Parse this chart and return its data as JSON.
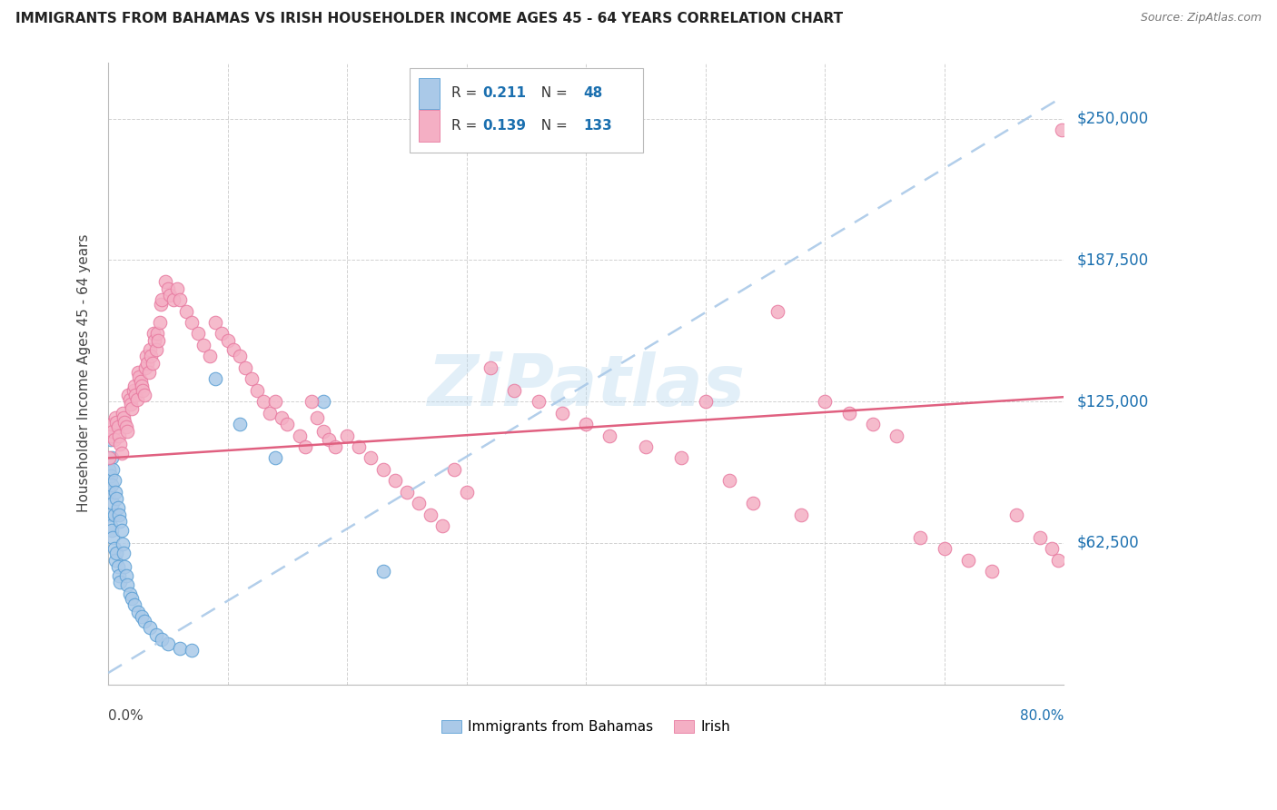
{
  "title": "IMMIGRANTS FROM BAHAMAS VS IRISH HOUSEHOLDER INCOME AGES 45 - 64 YEARS CORRELATION CHART",
  "source": "Source: ZipAtlas.com",
  "ylabel": "Householder Income Ages 45 - 64 years",
  "yticks": [
    0,
    62500,
    125000,
    187500,
    250000
  ],
  "ytick_labels": [
    "",
    "$62,500",
    "$125,000",
    "$187,500",
    "$250,000"
  ],
  "xmin": 0.0,
  "xmax": 0.8,
  "ymin": 0,
  "ymax": 275000,
  "legend_label_blue": "Immigrants from Bahamas",
  "legend_label_pink": "Irish",
  "watermark": "ZiPatlas",
  "blue_color": "#aac9e8",
  "pink_color": "#f4afc4",
  "blue_edge": "#5b9fd4",
  "pink_edge": "#e87aa0",
  "trend_blue_color": "#aac9e8",
  "trend_pink_color": "#e06080",
  "background": "#ffffff",
  "blue_scatter_x": [
    0.001,
    0.001,
    0.001,
    0.002,
    0.002,
    0.002,
    0.003,
    0.003,
    0.003,
    0.004,
    0.004,
    0.004,
    0.005,
    0.005,
    0.005,
    0.006,
    0.006,
    0.007,
    0.007,
    0.008,
    0.008,
    0.009,
    0.009,
    0.01,
    0.01,
    0.011,
    0.012,
    0.013,
    0.014,
    0.015,
    0.016,
    0.018,
    0.02,
    0.022,
    0.025,
    0.028,
    0.03,
    0.035,
    0.04,
    0.045,
    0.05,
    0.06,
    0.07,
    0.09,
    0.11,
    0.14,
    0.18,
    0.23
  ],
  "blue_scatter_y": [
    95000,
    85000,
    75000,
    108000,
    92000,
    70000,
    100000,
    88000,
    68000,
    95000,
    80000,
    65000,
    90000,
    75000,
    60000,
    85000,
    55000,
    82000,
    58000,
    78000,
    52000,
    75000,
    48000,
    72000,
    45000,
    68000,
    62000,
    58000,
    52000,
    48000,
    44000,
    40000,
    38000,
    35000,
    32000,
    30000,
    28000,
    25000,
    22000,
    20000,
    18000,
    16000,
    15000,
    135000,
    115000,
    100000,
    125000,
    50000
  ],
  "pink_scatter_x": [
    0.001,
    0.002,
    0.003,
    0.004,
    0.005,
    0.006,
    0.007,
    0.008,
    0.009,
    0.01,
    0.011,
    0.012,
    0.013,
    0.014,
    0.015,
    0.016,
    0.017,
    0.018,
    0.019,
    0.02,
    0.021,
    0.022,
    0.023,
    0.024,
    0.025,
    0.026,
    0.027,
    0.028,
    0.029,
    0.03,
    0.031,
    0.032,
    0.033,
    0.034,
    0.035,
    0.036,
    0.037,
    0.038,
    0.039,
    0.04,
    0.041,
    0.042,
    0.043,
    0.044,
    0.045,
    0.048,
    0.05,
    0.052,
    0.055,
    0.058,
    0.06,
    0.065,
    0.07,
    0.075,
    0.08,
    0.085,
    0.09,
    0.095,
    0.1,
    0.105,
    0.11,
    0.115,
    0.12,
    0.125,
    0.13,
    0.135,
    0.14,
    0.145,
    0.15,
    0.16,
    0.165,
    0.17,
    0.175,
    0.18,
    0.185,
    0.19,
    0.2,
    0.21,
    0.22,
    0.23,
    0.24,
    0.25,
    0.26,
    0.27,
    0.28,
    0.29,
    0.3,
    0.32,
    0.34,
    0.36,
    0.38,
    0.4,
    0.42,
    0.45,
    0.48,
    0.5,
    0.52,
    0.54,
    0.56,
    0.58,
    0.6,
    0.62,
    0.64,
    0.66,
    0.68,
    0.7,
    0.72,
    0.74,
    0.76,
    0.78,
    0.79,
    0.795,
    0.798
  ],
  "pink_scatter_y": [
    100000,
    110000,
    115000,
    112000,
    108000,
    118000,
    116000,
    114000,
    110000,
    106000,
    102000,
    120000,
    118000,
    116000,
    114000,
    112000,
    128000,
    126000,
    124000,
    122000,
    130000,
    132000,
    128000,
    126000,
    138000,
    136000,
    134000,
    132000,
    130000,
    128000,
    140000,
    145000,
    142000,
    138000,
    148000,
    145000,
    142000,
    155000,
    152000,
    148000,
    155000,
    152000,
    160000,
    168000,
    170000,
    178000,
    175000,
    172000,
    170000,
    175000,
    170000,
    165000,
    160000,
    155000,
    150000,
    145000,
    160000,
    155000,
    152000,
    148000,
    145000,
    140000,
    135000,
    130000,
    125000,
    120000,
    125000,
    118000,
    115000,
    110000,
    105000,
    125000,
    118000,
    112000,
    108000,
    105000,
    110000,
    105000,
    100000,
    95000,
    90000,
    85000,
    80000,
    75000,
    70000,
    95000,
    85000,
    140000,
    130000,
    125000,
    120000,
    115000,
    110000,
    105000,
    100000,
    125000,
    90000,
    80000,
    165000,
    75000,
    125000,
    120000,
    115000,
    110000,
    65000,
    60000,
    55000,
    50000,
    75000,
    65000,
    60000,
    55000,
    245000
  ],
  "blue_trend": [
    0,
    0.8,
    5000,
    260000
  ],
  "pink_trend": [
    0,
    0.8,
    100000,
    127000
  ]
}
